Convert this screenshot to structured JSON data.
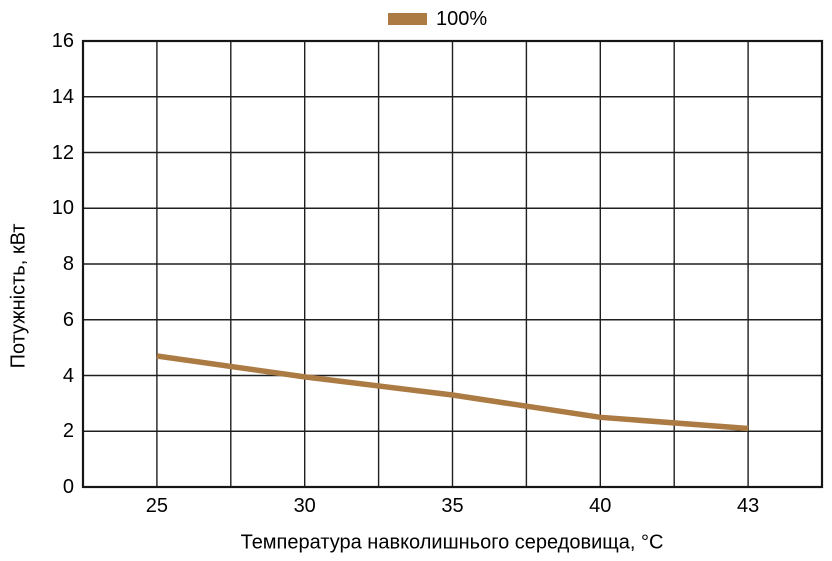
{
  "legend": {
    "label": "100%",
    "swatch_color": "#AC7B43"
  },
  "chart_data": {
    "type": "line",
    "title": "",
    "xlabel": "Температура навколишнього середовища, °C",
    "ylabel": "Потужність, кВт",
    "x_tick_labels": [
      "25",
      "30",
      "35",
      "40",
      "43"
    ],
    "x_tick_gridline_indices": [
      1,
      3,
      5,
      7,
      9
    ],
    "x_gridline_count": 11,
    "ylim": [
      0,
      16
    ],
    "y_tick_step": 2,
    "grid": true,
    "legend_position": "top-center",
    "series": [
      {
        "name": "100%",
        "color": "#AC7B43",
        "x": [
          25,
          30,
          35,
          40,
          43
        ],
        "x_indices": [
          1,
          3,
          5,
          7,
          9
        ],
        "values": [
          4.7,
          3.95,
          3.3,
          2.5,
          2.1
        ]
      }
    ]
  },
  "colors": {
    "line": "#AC7B43",
    "grid": "#1f1f1f",
    "border": "#161616",
    "background": "#ffffff",
    "text": "#000000"
  }
}
